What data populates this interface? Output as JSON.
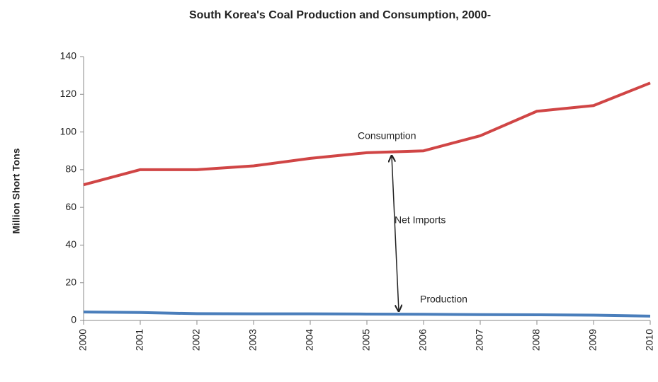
{
  "chart_data": {
    "type": "line",
    "title": "South Korea's Coal Production and Consumption, 2000-",
    "y_label": "Million Short Tons",
    "x": [
      2000,
      2001,
      2002,
      2003,
      2004,
      2005,
      2006,
      2007,
      2008,
      2009,
      2010
    ],
    "xlim": [
      2000,
      2010
    ],
    "xticks": [
      2000,
      2001,
      2002,
      2003,
      2004,
      2005,
      2006,
      2007,
      2008,
      2009,
      2010
    ],
    "ylim": [
      0,
      140
    ],
    "yticks": [
      0,
      20,
      40,
      60,
      80,
      100,
      120,
      140
    ],
    "series": [
      {
        "name": "Consumption",
        "color": "#d04545",
        "values": [
          72,
          80,
          80,
          82,
          86,
          89,
          90,
          98,
          111,
          114,
          126
        ]
      },
      {
        "name": "Production",
        "color": "#4a7ebb",
        "values": [
          4.5,
          4.2,
          3.6,
          3.5,
          3.5,
          3.4,
          3.3,
          3.1,
          3.0,
          2.8,
          2.3
        ]
      }
    ],
    "annotations": [
      "Consumption",
      "Net Imports",
      "Production"
    ]
  }
}
